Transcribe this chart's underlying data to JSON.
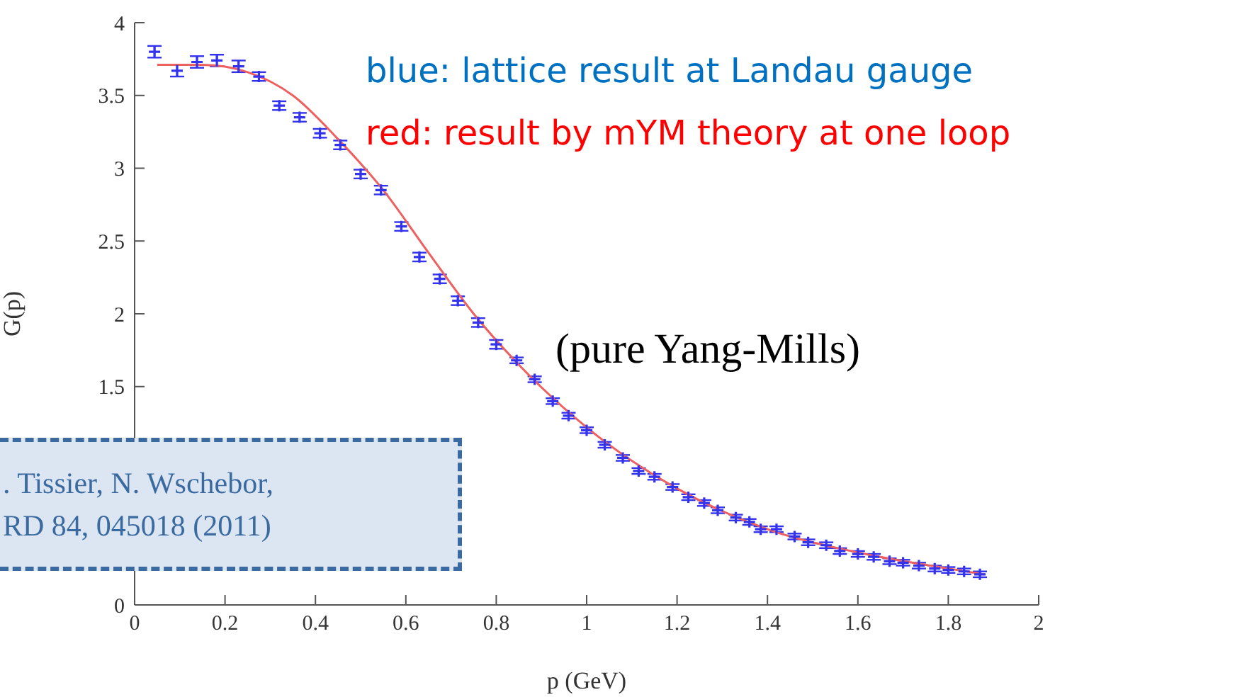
{
  "chart_data": {
    "type": "scatter",
    "xlabel": "p (GeV)",
    "ylabel": "G(p)",
    "xlim": [
      0,
      2
    ],
    "xticks": [
      0,
      0.2,
      0.4,
      0.6,
      0.8,
      1,
      1.2,
      1.4,
      1.6,
      1.8,
      2
    ],
    "ylim": [
      0,
      4
    ],
    "yticks": [
      0,
      1.5,
      2,
      2.5,
      3,
      3.5,
      4
    ],
    "annotations": [
      "blue: lattice result at Landau gauge",
      "red: result by mYM theory at one loop",
      "(pure Yang-Mills)",
      ". Tissier, N. Wschebor,",
      "RD 84, 045018 (2011)"
    ],
    "series": [
      {
        "marker": "cross",
        "color": "#3333ee",
        "x": [
          0.044,
          0.094,
          0.138,
          0.182,
          0.23,
          0.275,
          0.32,
          0.365,
          0.41,
          0.455,
          0.5,
          0.545,
          0.59,
          0.63,
          0.675,
          0.715,
          0.76,
          0.8,
          0.845,
          0.885,
          0.925,
          0.96,
          1.0,
          1.04,
          1.08,
          1.115,
          1.15,
          1.19,
          1.225,
          1.26,
          1.29,
          1.33,
          1.36,
          1.385,
          1.42,
          1.46,
          1.49,
          1.53,
          1.56,
          1.6,
          1.635,
          1.67,
          1.7,
          1.735,
          1.77,
          1.8,
          1.835,
          1.87
        ],
        "values": [
          3.8,
          3.67,
          3.73,
          3.74,
          3.7,
          3.63,
          3.43,
          3.35,
          3.24,
          3.16,
          2.96,
          2.85,
          2.6,
          2.39,
          2.24,
          2.09,
          1.94,
          1.79,
          1.68,
          1.55,
          1.4,
          1.3,
          1.2,
          1.1,
          1.01,
          0.92,
          0.88,
          0.81,
          0.74,
          0.7,
          0.65,
          0.6,
          0.57,
          0.52,
          0.52,
          0.47,
          0.43,
          0.41,
          0.37,
          0.35,
          0.33,
          0.3,
          0.29,
          0.27,
          0.25,
          0.24,
          0.23,
          0.21
        ],
        "errors": [
          0.04,
          0.04,
          0.04,
          0.04,
          0.04,
          0.03,
          0.03,
          0.03,
          0.03,
          0.03,
          0.03,
          0.03,
          0.03,
          0.03,
          0.03,
          0.03,
          0.03,
          0.03,
          0.02,
          0.02,
          0.02,
          0.02,
          0.02,
          0.02,
          0.02,
          0.02,
          0.02,
          0.02,
          0.02,
          0.02,
          0.02,
          0.02,
          0.02,
          0.02,
          0.02,
          0.02,
          0.02,
          0.02,
          0.02,
          0.02,
          0.02,
          0.02,
          0.02,
          0.02,
          0.02,
          0.02,
          0.02,
          0.02
        ]
      },
      {
        "type": "line",
        "color": "#ee6060",
        "x": [
          0.05,
          0.15,
          0.25,
          0.35,
          0.45,
          0.55,
          0.65,
          0.75,
          0.85,
          1.0,
          1.2,
          1.4,
          1.6,
          1.8,
          1.88
        ],
        "values": [
          3.71,
          3.71,
          3.66,
          3.5,
          3.2,
          2.85,
          2.42,
          2.0,
          1.65,
          1.22,
          0.8,
          0.52,
          0.36,
          0.25,
          0.21
        ]
      }
    ]
  }
}
